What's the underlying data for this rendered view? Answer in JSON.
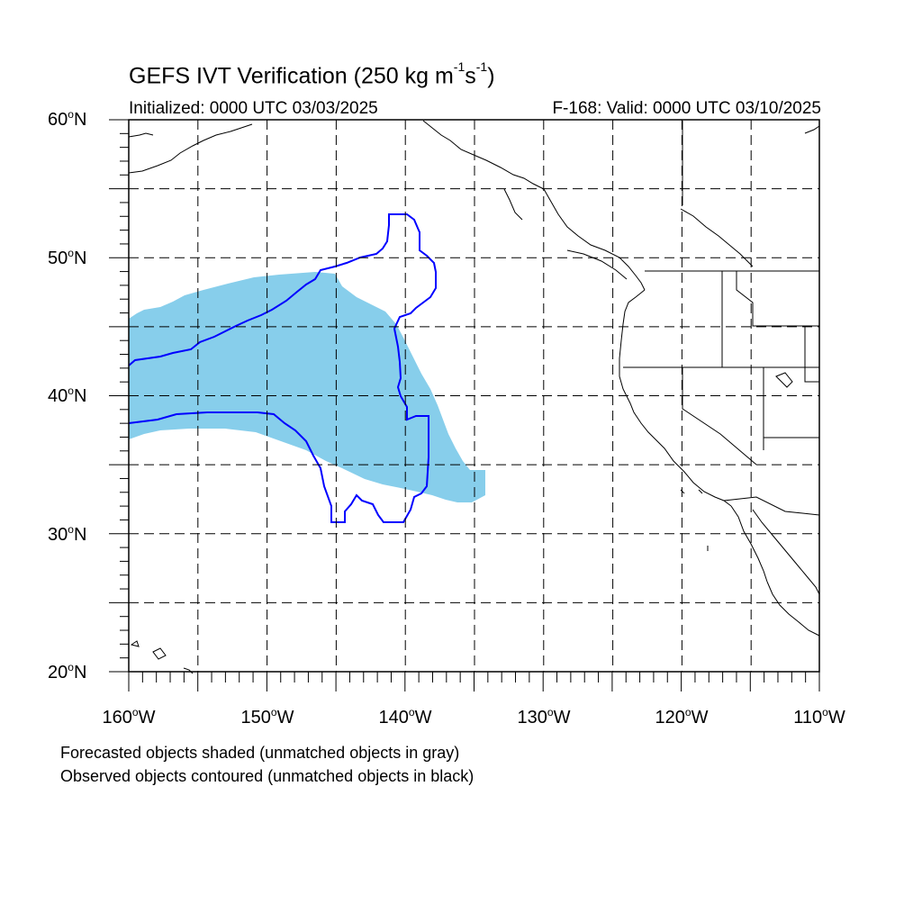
{
  "title": {
    "main": "GEFS IVT Verification (250 kg m",
    "sup1": "-1",
    "mid": "s",
    "sup2": "-1",
    "end": ")"
  },
  "initialized": "Initialized: 0000 UTC 03/03/2025",
  "valid": "F-168: Valid: 0000 UTC 03/10/2025",
  "map": {
    "lon_range": [
      -160,
      -110
    ],
    "lat_range": [
      20,
      60
    ],
    "gridlines": "dashed",
    "forecast_fill_color": "#87ceeb",
    "observed_contour_color": "#0000ff",
    "lat_labels": [
      {
        "text": "60",
        "suffix": "N",
        "lat": 60
      },
      {
        "text": "50",
        "suffix": "N",
        "lat": 50
      },
      {
        "text": "40",
        "suffix": "N",
        "lat": 40
      },
      {
        "text": "30",
        "suffix": "N",
        "lat": 30
      },
      {
        "text": "20",
        "suffix": "N",
        "lat": 20
      }
    ],
    "lon_labels": [
      {
        "text": "160",
        "suffix": "W",
        "lon": -160
      },
      {
        "text": "150",
        "suffix": "W",
        "lon": -150
      },
      {
        "text": "140",
        "suffix": "W",
        "lon": -140
      },
      {
        "text": "130",
        "suffix": "W",
        "lon": -130
      },
      {
        "text": "120",
        "suffix": "W",
        "lon": -120
      },
      {
        "text": "110",
        "suffix": "W",
        "lon": -110
      }
    ]
  },
  "notes": [
    "Forecasted objects shaded (unmatched objects in gray)",
    "Observed objects contoured (unmatched objects in black)"
  ]
}
